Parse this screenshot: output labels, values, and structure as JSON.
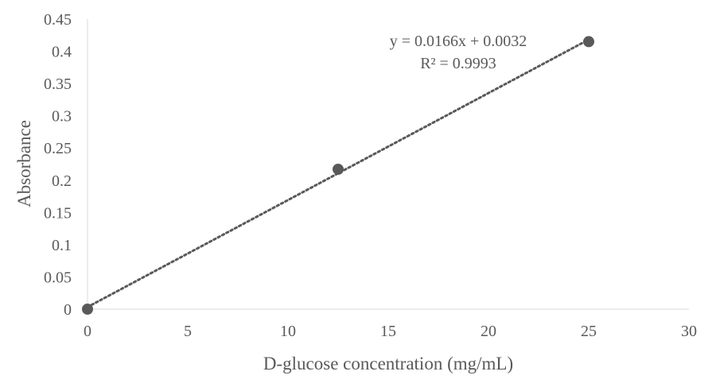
{
  "chart_data": {
    "type": "scatter",
    "title": "",
    "xlabel": "D-glucose concentration (mg/mL)",
    "ylabel": "Absorbance",
    "xlim": [
      0,
      30
    ],
    "ylim": [
      0,
      0.45
    ],
    "x_ticks": [
      0,
      5,
      10,
      15,
      20,
      25,
      30
    ],
    "y_ticks": [
      0,
      0.05,
      0.1,
      0.15,
      0.2,
      0.25,
      0.3,
      0.35,
      0.4,
      0.45
    ],
    "x_tick_labels": [
      "0",
      "5",
      "10",
      "15",
      "20",
      "25",
      "30"
    ],
    "y_tick_labels": [
      "0",
      "0.05",
      "0.1",
      "0.15",
      "0.2",
      "0.25",
      "0.3",
      "0.35",
      "0.4",
      "0.45"
    ],
    "grid": false,
    "legend": "none",
    "series": [
      {
        "x": [
          0,
          12.5,
          25
        ],
        "y": [
          0,
          0.217,
          0.415
        ],
        "marker_color": "#595959"
      }
    ],
    "trendline": {
      "type": "linear",
      "slope": 0.0166,
      "intercept": 0.0032,
      "x_range": [
        0,
        25
      ],
      "style": "dotted",
      "color": "#595959",
      "equation_label": "y = 0.0166x + 0.0032",
      "r2_label": "R² = 0.9993"
    },
    "axis_color": "#d9d9d9",
    "text_color": "#595959"
  }
}
